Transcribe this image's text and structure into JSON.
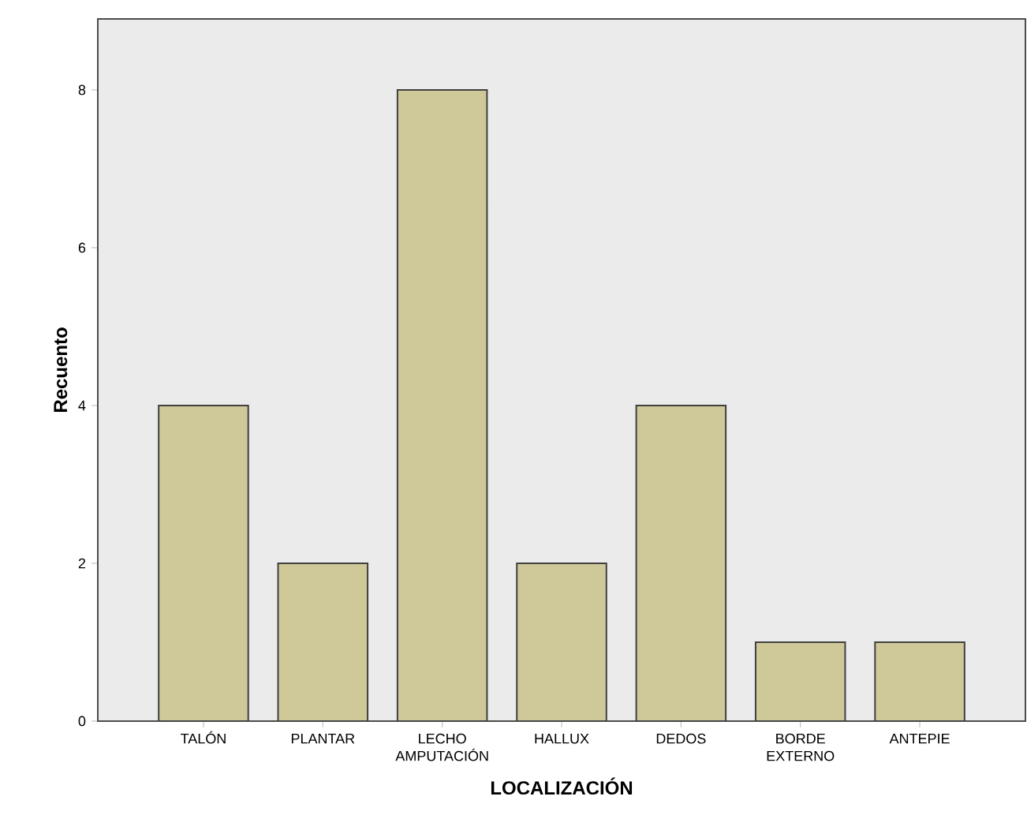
{
  "chart_data": {
    "type": "bar",
    "xlabel": "LOCALIZACIÓN",
    "ylabel": "Recuento",
    "categories": [
      "TALÓN",
      "PLANTAR",
      "LECHO AMPUTACIÓN",
      "HALLUX",
      "DEDOS",
      "BORDE EXTERNO",
      "ANTEPIE"
    ],
    "values": [
      4,
      2,
      8,
      2,
      4,
      1,
      1
    ],
    "color": "#cfc99a",
    "ylim": [
      0,
      8.9
    ],
    "yticks": [
      0,
      2,
      4,
      6,
      8
    ]
  }
}
